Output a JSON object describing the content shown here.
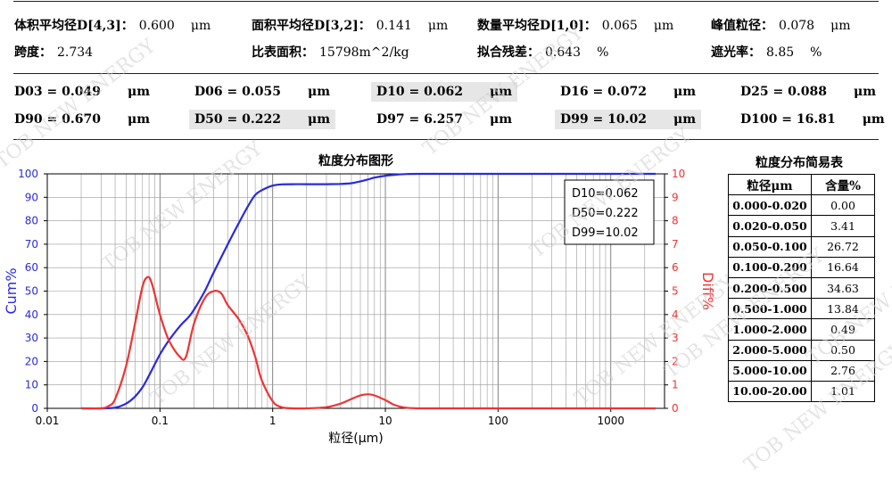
{
  "summary": {
    "row1": [
      {
        "label": "体积平均径D[4,3]：",
        "value": "0.600",
        "unit": "μm"
      },
      {
        "label": "面积平均径D[3,2]：",
        "value": "0.141",
        "unit": "μm"
      },
      {
        "label": "数量平均径D[1,0]：",
        "value": "0.065",
        "unit": "μm"
      },
      {
        "label": "峰值粒径：",
        "value": "0.078",
        "unit": "μm"
      }
    ],
    "row2": [
      {
        "label": "跨度：",
        "value": "2.734",
        "unit": ""
      },
      {
        "label": "比表面积：",
        "value": "15798m^2/kg",
        "unit": ""
      },
      {
        "label": "拟合残差：",
        "value": "0.643",
        "unit": "%"
      },
      {
        "label": "遮光率：",
        "value": "8.85",
        "unit": "%"
      }
    ]
  },
  "percentiles": {
    "row1": [
      {
        "text": "D03 = 0.049",
        "unit": "μm",
        "highlight": false
      },
      {
        "text": "D06 = 0.055",
        "unit": "μm",
        "highlight": false
      },
      {
        "text": "D10 = 0.062",
        "unit": "μm",
        "highlight": true
      },
      {
        "text": "D16 = 0.072",
        "unit": "μm",
        "highlight": false
      },
      {
        "text": "D25 = 0.088",
        "unit": "μm",
        "highlight": false
      }
    ],
    "row2": [
      {
        "text": "D90 = 0.670",
        "unit": "μm",
        "highlight": false
      },
      {
        "text": "D50 = 0.222",
        "unit": "μm",
        "highlight": true
      },
      {
        "text": "D97 = 6.257",
        "unit": "μm",
        "highlight": false
      },
      {
        "text": "D99 = 10.02",
        "unit": "μm",
        "highlight": true
      },
      {
        "text": "D100 = 16.81",
        "unit": "μm",
        "highlight": false
      }
    ]
  },
  "chart_data": {
    "type": "line",
    "title": "粒度分布图形",
    "xlabel": "粒径(μm)",
    "ylabel_left": "Cum%",
    "ylabel_right": "Diff%",
    "x_scale": "log",
    "xlim": [
      0.01,
      3000
    ],
    "x_tick_labels": [
      "0.01",
      "0.1",
      "1",
      "10",
      "100",
      "1000"
    ],
    "ylim_left": [
      0,
      100
    ],
    "ylim_right": [
      0,
      10
    ],
    "grid": true,
    "colors": {
      "cum": "#2a2adf",
      "diff": "#ef3333"
    },
    "annotation": [
      "D10=0.062",
      "D50=0.222",
      "D99=10.02"
    ],
    "series": [
      {
        "axis": "left",
        "x": [
          0.02,
          0.03,
          0.04,
          0.05,
          0.06,
          0.07,
          0.08,
          0.1,
          0.12,
          0.15,
          0.18,
          0.2,
          0.25,
          0.3,
          0.4,
          0.5,
          0.6,
          0.7,
          0.8,
          1,
          1.2,
          1.5,
          2,
          3,
          4,
          5,
          6,
          7,
          8,
          10,
          12,
          15,
          20,
          50,
          100,
          500,
          1000,
          2500
        ],
        "values": [
          0,
          0,
          0.3,
          2,
          5,
          9,
          14,
          23,
          29,
          35,
          39,
          42,
          50,
          58,
          70,
          79,
          86,
          91,
          93,
          95,
          95.5,
          95.6,
          95.6,
          95.6,
          95.7,
          96,
          96.8,
          97.6,
          98.4,
          99.2,
          99.6,
          99.9,
          100,
          100,
          100,
          100,
          100,
          100
        ]
      },
      {
        "axis": "right",
        "x": [
          0.02,
          0.03,
          0.035,
          0.04,
          0.05,
          0.06,
          0.07,
          0.078,
          0.085,
          0.1,
          0.12,
          0.15,
          0.17,
          0.2,
          0.25,
          0.3,
          0.35,
          0.4,
          0.5,
          0.6,
          0.7,
          0.8,
          1,
          1.2,
          1.5,
          2,
          3,
          4,
          5,
          6,
          7,
          8,
          10,
          12,
          15,
          20,
          30,
          2500
        ],
        "values": [
          0,
          0,
          0.1,
          0.4,
          1.8,
          3.6,
          5.2,
          5.6,
          5.3,
          4.0,
          2.9,
          2.2,
          2.2,
          3.6,
          4.7,
          5.0,
          4.9,
          4.4,
          3.8,
          3.1,
          2.2,
          1.2,
          0.3,
          0.05,
          0,
          0,
          0.05,
          0.2,
          0.4,
          0.55,
          0.6,
          0.55,
          0.35,
          0.15,
          0.03,
          0,
          0,
          0
        ]
      }
    ]
  },
  "table": {
    "title": "粒度分布简易表",
    "headers": [
      "粒径μm",
      "含量%"
    ],
    "rows": [
      [
        "0.000-0.020",
        "0.00"
      ],
      [
        "0.020-0.050",
        "3.41"
      ],
      [
        "0.050-0.100",
        "26.72"
      ],
      [
        "0.100-0.200",
        "16.64"
      ],
      [
        "0.200-0.500",
        "34.63"
      ],
      [
        "0.500-1.000",
        "13.84"
      ],
      [
        "1.000-2.000",
        "0.49"
      ],
      [
        "2.000-5.000",
        "0.50"
      ],
      [
        "5.000-10.00",
        "2.76"
      ],
      [
        "10.00-20.00",
        "1.01"
      ]
    ]
  },
  "watermark": "TOB NEW ENERGY"
}
